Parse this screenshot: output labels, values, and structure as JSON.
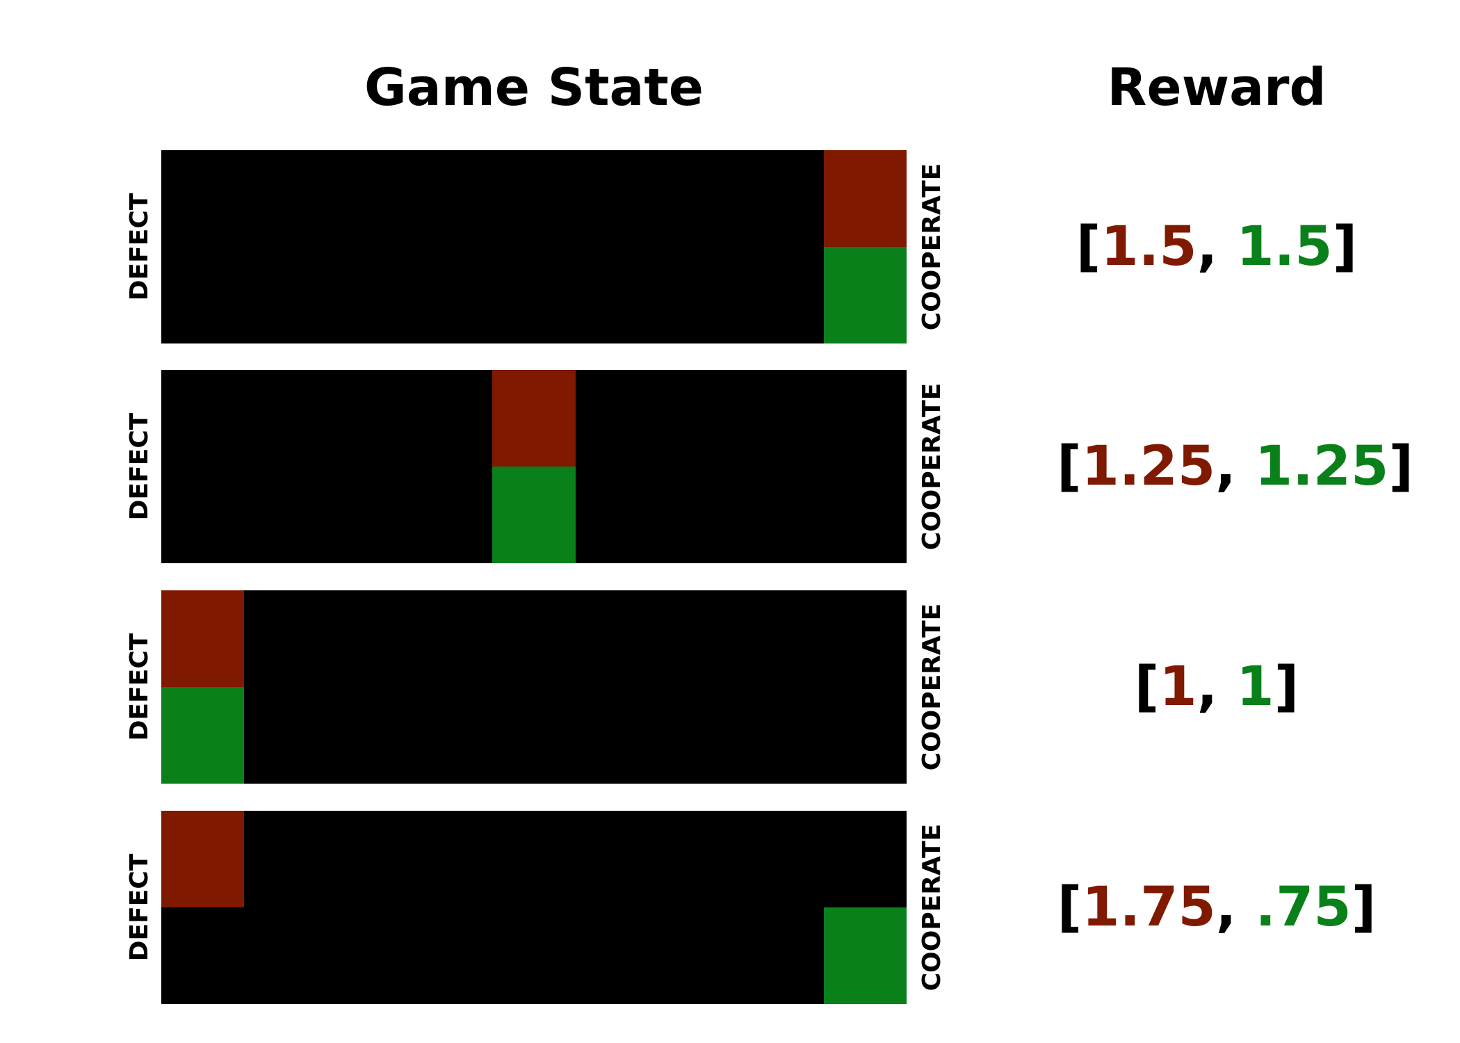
{
  "headings": {
    "game_state": "Game State",
    "reward": "Reward"
  },
  "labels": {
    "defect": "DEFECT",
    "cooperate": "COOPERATE"
  },
  "colors": {
    "board": "#000000",
    "player1": "#7f1900",
    "player2": "#0a801a"
  },
  "board": {
    "columns": 9,
    "rows": 2
  },
  "states": [
    {
      "player1_col": 9,
      "player2_col": 9,
      "reward": {
        "open": "[",
        "p1": "1.5",
        "sep": ", ",
        "p2": "1.5",
        "close": "]"
      }
    },
    {
      "player1_col": 5,
      "player2_col": 5,
      "reward": {
        "open": "[",
        "p1": "1.25",
        "sep": ", ",
        "p2": "1.25",
        "close": "]"
      }
    },
    {
      "player1_col": 1,
      "player2_col": 1,
      "reward": {
        "open": "[",
        "p1": "1",
        "sep": ", ",
        "p2": "1",
        "close": "]"
      }
    },
    {
      "player1_col": 1,
      "player2_col": 9,
      "reward": {
        "open": "[",
        "p1": "1.75",
        "sep": ", ",
        "p2": ".75",
        "close": "]"
      }
    }
  ]
}
